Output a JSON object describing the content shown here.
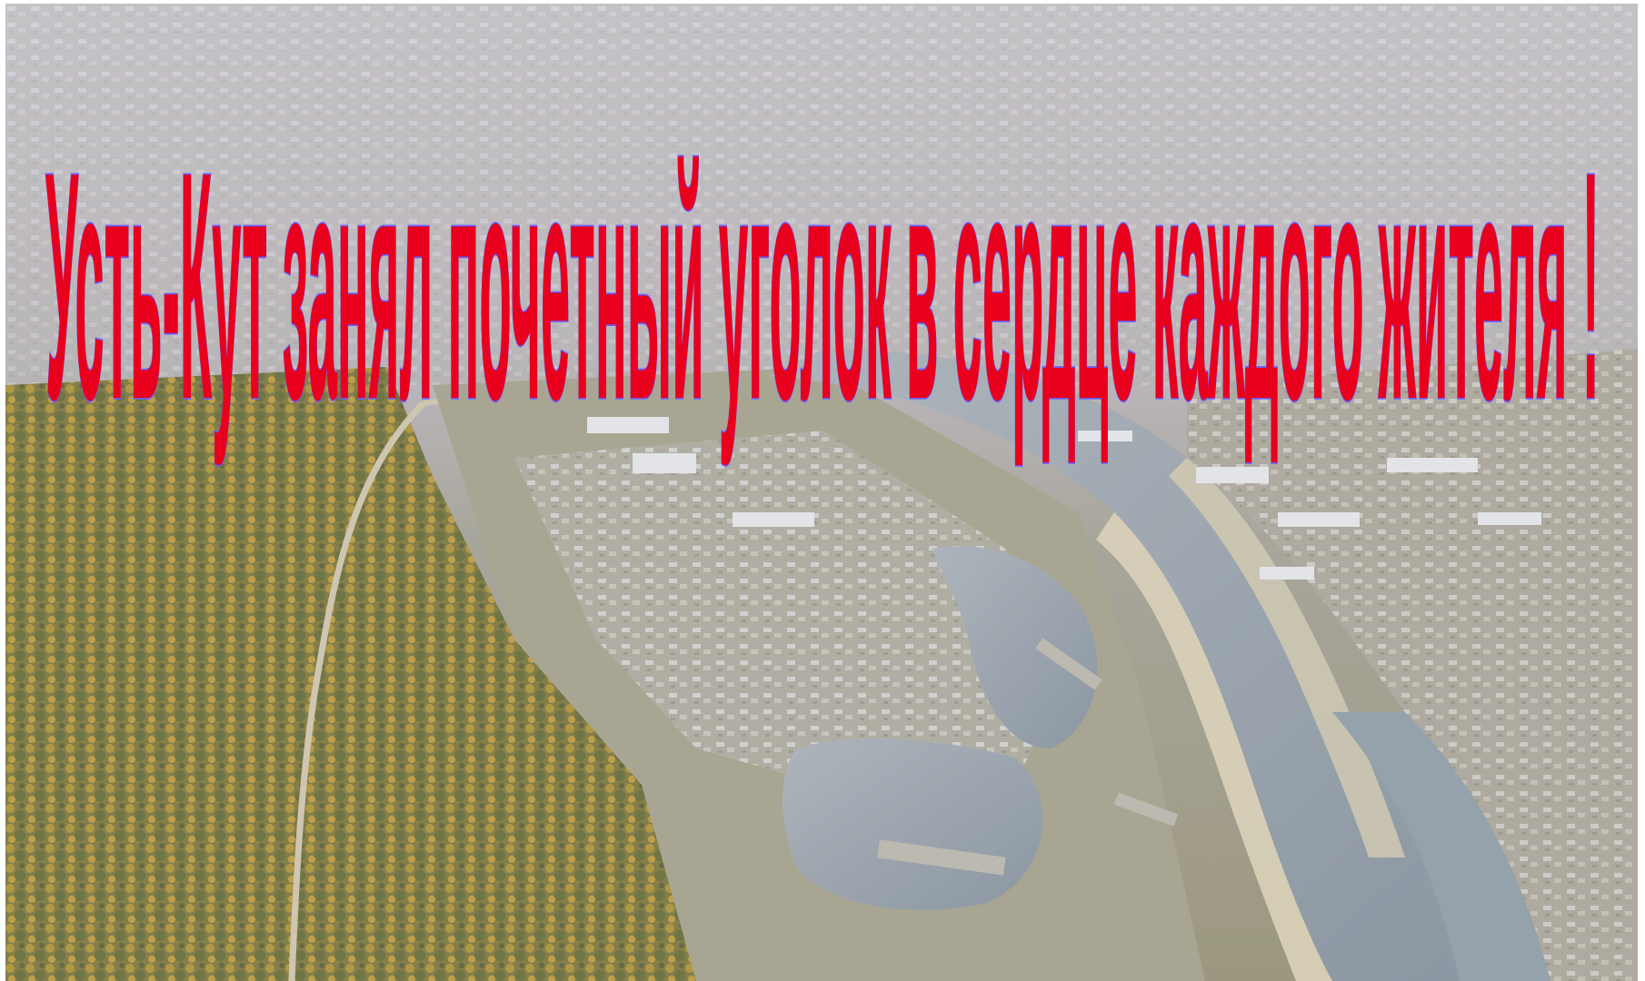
{
  "slide": {
    "title": "Усть-Кут занял почетный уголок  в сердце каждого жителя !",
    "title_color": "#e8001c",
    "title_outline_color": "#6a5cff"
  },
  "photo": {
    "subject": "aerial-view-river-port-town",
    "colors": {
      "sky_haze": "#b9b4c6",
      "forest_dark": "#4f5a2e",
      "forest_autumn": "#a8892f",
      "river": "#8f9aa6",
      "sand_bank": "#d7cdb2",
      "town_grey": "#a9a7a2",
      "roofs": "#d9dbe0"
    }
  }
}
